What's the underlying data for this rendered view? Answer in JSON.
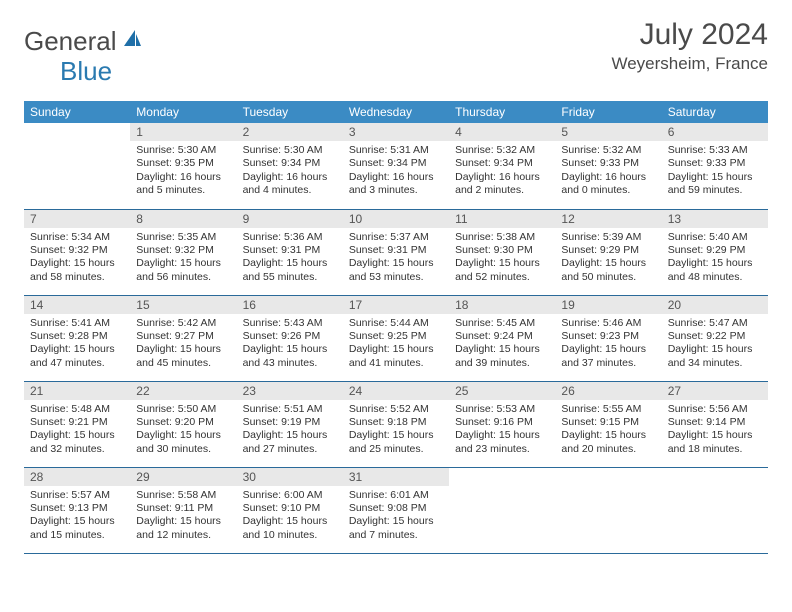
{
  "logo": {
    "text1": "General",
    "text2": "Blue"
  },
  "title": "July 2024",
  "location": "Weyersheim, France",
  "colors": {
    "header_bg": "#3b8bc4",
    "header_text": "#ffffff",
    "daynum_bg": "#e8e8e8",
    "daynum_text": "#555555",
    "body_text": "#333333",
    "rule": "#2a6a9a",
    "logo_gray": "#4a4a4a",
    "logo_blue": "#2a7ab0"
  },
  "weekdays": [
    "Sunday",
    "Monday",
    "Tuesday",
    "Wednesday",
    "Thursday",
    "Friday",
    "Saturday"
  ],
  "layout": {
    "first_weekday_index": 1,
    "days_in_month": 31
  },
  "labels": {
    "sunrise": "Sunrise:",
    "sunset": "Sunset:",
    "daylight": "Daylight:"
  },
  "days": [
    {
      "n": 1,
      "sunrise": "5:30 AM",
      "sunset": "9:35 PM",
      "daylight": "16 hours and 5 minutes."
    },
    {
      "n": 2,
      "sunrise": "5:30 AM",
      "sunset": "9:34 PM",
      "daylight": "16 hours and 4 minutes."
    },
    {
      "n": 3,
      "sunrise": "5:31 AM",
      "sunset": "9:34 PM",
      "daylight": "16 hours and 3 minutes."
    },
    {
      "n": 4,
      "sunrise": "5:32 AM",
      "sunset": "9:34 PM",
      "daylight": "16 hours and 2 minutes."
    },
    {
      "n": 5,
      "sunrise": "5:32 AM",
      "sunset": "9:33 PM",
      "daylight": "16 hours and 0 minutes."
    },
    {
      "n": 6,
      "sunrise": "5:33 AM",
      "sunset": "9:33 PM",
      "daylight": "15 hours and 59 minutes."
    },
    {
      "n": 7,
      "sunrise": "5:34 AM",
      "sunset": "9:32 PM",
      "daylight": "15 hours and 58 minutes."
    },
    {
      "n": 8,
      "sunrise": "5:35 AM",
      "sunset": "9:32 PM",
      "daylight": "15 hours and 56 minutes."
    },
    {
      "n": 9,
      "sunrise": "5:36 AM",
      "sunset": "9:31 PM",
      "daylight": "15 hours and 55 minutes."
    },
    {
      "n": 10,
      "sunrise": "5:37 AM",
      "sunset": "9:31 PM",
      "daylight": "15 hours and 53 minutes."
    },
    {
      "n": 11,
      "sunrise": "5:38 AM",
      "sunset": "9:30 PM",
      "daylight": "15 hours and 52 minutes."
    },
    {
      "n": 12,
      "sunrise": "5:39 AM",
      "sunset": "9:29 PM",
      "daylight": "15 hours and 50 minutes."
    },
    {
      "n": 13,
      "sunrise": "5:40 AM",
      "sunset": "9:29 PM",
      "daylight": "15 hours and 48 minutes."
    },
    {
      "n": 14,
      "sunrise": "5:41 AM",
      "sunset": "9:28 PM",
      "daylight": "15 hours and 47 minutes."
    },
    {
      "n": 15,
      "sunrise": "5:42 AM",
      "sunset": "9:27 PM",
      "daylight": "15 hours and 45 minutes."
    },
    {
      "n": 16,
      "sunrise": "5:43 AM",
      "sunset": "9:26 PM",
      "daylight": "15 hours and 43 minutes."
    },
    {
      "n": 17,
      "sunrise": "5:44 AM",
      "sunset": "9:25 PM",
      "daylight": "15 hours and 41 minutes."
    },
    {
      "n": 18,
      "sunrise": "5:45 AM",
      "sunset": "9:24 PM",
      "daylight": "15 hours and 39 minutes."
    },
    {
      "n": 19,
      "sunrise": "5:46 AM",
      "sunset": "9:23 PM",
      "daylight": "15 hours and 37 minutes."
    },
    {
      "n": 20,
      "sunrise": "5:47 AM",
      "sunset": "9:22 PM",
      "daylight": "15 hours and 34 minutes."
    },
    {
      "n": 21,
      "sunrise": "5:48 AM",
      "sunset": "9:21 PM",
      "daylight": "15 hours and 32 minutes."
    },
    {
      "n": 22,
      "sunrise": "5:50 AM",
      "sunset": "9:20 PM",
      "daylight": "15 hours and 30 minutes."
    },
    {
      "n": 23,
      "sunrise": "5:51 AM",
      "sunset": "9:19 PM",
      "daylight": "15 hours and 27 minutes."
    },
    {
      "n": 24,
      "sunrise": "5:52 AM",
      "sunset": "9:18 PM",
      "daylight": "15 hours and 25 minutes."
    },
    {
      "n": 25,
      "sunrise": "5:53 AM",
      "sunset": "9:16 PM",
      "daylight": "15 hours and 23 minutes."
    },
    {
      "n": 26,
      "sunrise": "5:55 AM",
      "sunset": "9:15 PM",
      "daylight": "15 hours and 20 minutes."
    },
    {
      "n": 27,
      "sunrise": "5:56 AM",
      "sunset": "9:14 PM",
      "daylight": "15 hours and 18 minutes."
    },
    {
      "n": 28,
      "sunrise": "5:57 AM",
      "sunset": "9:13 PM",
      "daylight": "15 hours and 15 minutes."
    },
    {
      "n": 29,
      "sunrise": "5:58 AM",
      "sunset": "9:11 PM",
      "daylight": "15 hours and 12 minutes."
    },
    {
      "n": 30,
      "sunrise": "6:00 AM",
      "sunset": "9:10 PM",
      "daylight": "15 hours and 10 minutes."
    },
    {
      "n": 31,
      "sunrise": "6:01 AM",
      "sunset": "9:08 PM",
      "daylight": "15 hours and 7 minutes."
    }
  ]
}
